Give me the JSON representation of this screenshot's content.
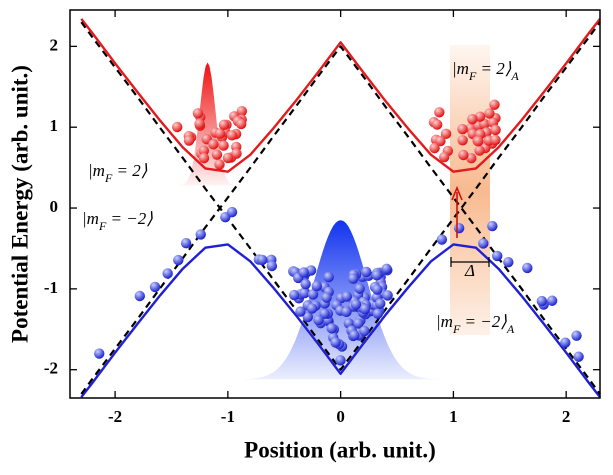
{
  "chart_data": {
    "type": "line",
    "xlabel": "Position (arb. unit.)",
    "ylabel": "Potential Energy (arb. unit.)",
    "x": [
      -2.3,
      -2.2,
      -2,
      -1.8,
      -1.6,
      -1.4,
      -1.2,
      -1,
      -0.8,
      -0.6,
      -0.4,
      -0.2,
      0,
      0.2,
      0.4,
      0.6,
      0.8,
      1,
      1.2,
      1.4,
      1.6,
      1.8,
      2,
      2.2,
      2.3
    ],
    "series": [
      {
        "color": "#e41a1c",
        "style": "solid",
        "values": [
          2.34,
          2.16,
          1.79,
          1.43,
          1.08,
          0.75,
          0.49,
          0.45,
          0.66,
          0.98,
          1.32,
          1.68,
          2.05,
          1.68,
          1.32,
          0.98,
          0.66,
          0.45,
          0.49,
          0.75,
          1.08,
          1.43,
          1.79,
          2.16,
          2.34
        ]
      },
      {
        "color": "#1f1fd6",
        "style": "solid",
        "values": [
          -2.34,
          -2.16,
          -1.79,
          -1.43,
          -1.08,
          -0.75,
          -0.49,
          -0.45,
          -0.66,
          -0.98,
          -1.32,
          -1.68,
          -2.05,
          -1.68,
          -1.32,
          -0.98,
          -0.66,
          -0.45,
          -0.49,
          -0.75,
          -1.08,
          -1.43,
          -1.79,
          -2.16,
          -2.34
        ]
      },
      {
        "color": "#000000",
        "style": "dashed",
        "values": [
          -2.3,
          -2.11,
          -1.74,
          -1.37,
          -0.99,
          -0.62,
          -0.24,
          0.13,
          0.5,
          0.88,
          1.25,
          1.63,
          2,
          1.63,
          1.25,
          0.88,
          0.5,
          0.13,
          -0.24,
          -0.62,
          -0.99,
          -1.37,
          -1.74,
          -2.11,
          -2.3
        ]
      },
      {
        "color": "#000000",
        "style": "dashed",
        "values": [
          2.3,
          2.11,
          1.74,
          1.37,
          0.99,
          0.62,
          0.24,
          -0.13,
          -0.5,
          -0.88,
          -1.25,
          -1.63,
          -2,
          -1.63,
          -1.25,
          -0.88,
          -0.5,
          -0.13,
          0.24,
          0.62,
          0.99,
          1.37,
          1.74,
          2.11,
          2.3
        ]
      }
    ],
    "xlim": [
      -2.4,
      2.3
    ],
    "ylim": [
      -2.35,
      2.45
    ],
    "xticks": [
      -2,
      -1,
      0,
      1,
      2
    ],
    "yticks": [
      -2,
      -1,
      0,
      1,
      2
    ],
    "annotations": [
      [
        "|m",
        "F",
        " = 2⟩"
      ],
      [
        "|m",
        "F",
        " = −2⟩"
      ],
      [
        "|m",
        "F",
        " = 2⟩",
        "A"
      ],
      [
        "|m",
        "F",
        " = −2⟩",
        "A"
      ],
      [
        "Δ"
      ]
    ]
  }
}
